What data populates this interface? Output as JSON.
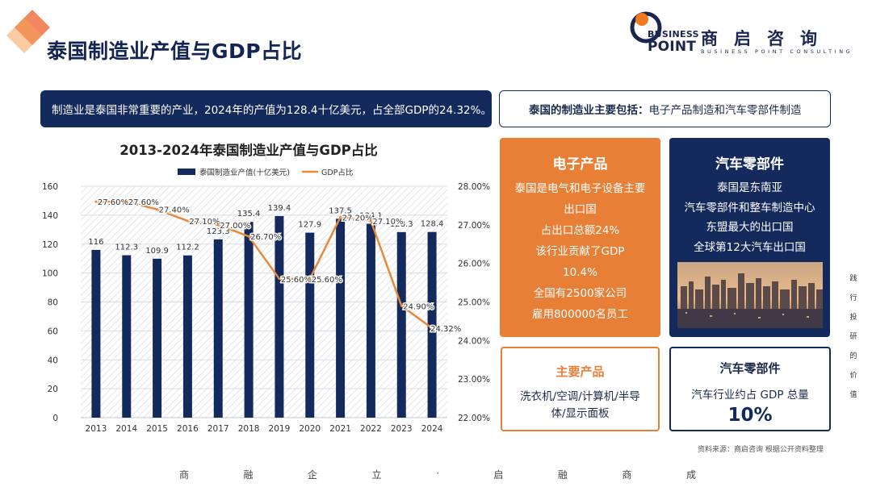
{
  "page": {
    "title": "泰国制造业产值与GDP占比"
  },
  "logo": {
    "word_line1": "BUSINESS",
    "word_line2": "POINT",
    "name_cn": "商启咨询",
    "tagline_en": "BUSINESS POINT CONSULTING"
  },
  "summary": {
    "text": "制造业是泰国非常重要的产业，2024年的产值为128.4十亿美元，占全部GDP的24.32%。"
  },
  "focus": {
    "label": "泰国的制造业主要包括：",
    "value": "电子产品制造和汽车零部件制造"
  },
  "chart_data": {
    "type": "bar",
    "title": "2013-2024年泰国制造业产值与GDP占比",
    "categories": [
      "2013",
      "2014",
      "2015",
      "2016",
      "2017",
      "2018",
      "2019",
      "2020",
      "2021",
      "2022",
      "2023",
      "2024"
    ],
    "series": [
      {
        "name": "泰国制造业产值(十亿美元)",
        "type": "bar",
        "axis": "left",
        "values": [
          116,
          112.3,
          109.9,
          112.2,
          123.3,
          135.4,
          139.4,
          127.9,
          137.5,
          134.1,
          128.3,
          128.4
        ],
        "labels": [
          "116",
          "112.3",
          "109.9",
          "112.2",
          "123.3",
          "135.4",
          "139.4",
          "127.9",
          "137.5",
          "134.1",
          "128.3",
          "128.4"
        ],
        "color": "#142a5c"
      },
      {
        "name": "GDP占比",
        "type": "line",
        "axis": "right",
        "values": [
          27.6,
          27.6,
          27.4,
          27.1,
          27.0,
          26.7,
          25.6,
          25.6,
          27.2,
          27.1,
          24.9,
          24.32
        ],
        "labels": [
          "27.60%",
          "27.60%",
          "27.40%",
          "27.10%",
          "27.00%",
          "26.70%",
          "25.60%",
          "25.60%",
          "27.20%",
          "27.10%",
          "24.90%",
          "24.32%"
        ],
        "color": "#e8883a"
      }
    ],
    "ylim_left": [
      0,
      160
    ],
    "yticks_left": [
      "0",
      "20",
      "40",
      "60",
      "80",
      "100",
      "120",
      "140",
      "160"
    ],
    "ylim_right": [
      22,
      28
    ],
    "yticks_right": [
      "22.00%",
      "23.00%",
      "24.00%",
      "25.00%",
      "26.00%",
      "27.00%",
      "28.00%"
    ],
    "grid": true,
    "legend_position": "top"
  },
  "cards": {
    "electronics": {
      "title": "电子产品",
      "lines": [
        "泰国是电气和电子设备主要",
        "出口国",
        "占出口总额24%",
        "该行业贡献了GDP",
        "10.4%",
        "全国有2500家公司",
        "雇用800000名员工"
      ]
    },
    "auto": {
      "title": "汽车零部件",
      "lines": [
        "泰国是东南亚",
        "汽车零部件和整车制造中心",
        "东盟最大的出口国",
        "全球第12大汽车出口国"
      ]
    },
    "products": {
      "title": "主要产品",
      "desc": "洗衣机/空调/计算机/半导体/显示面板"
    },
    "auto_share": {
      "title": "汽车零部件",
      "desc": "汽车行业约占 GDP 总量",
      "value": "10%"
    }
  },
  "source": {
    "text": "资料来源：商启咨询 根据公开资料整理"
  },
  "vertical_slogan": [
    "践",
    "行",
    "投",
    "研",
    "的",
    "价",
    "值"
  ],
  "footer_slogan": [
    "商",
    "融",
    "企",
    "立",
    "·",
    "启",
    "融",
    "商",
    "成"
  ],
  "colors": {
    "navy": "#142a5c",
    "orange": "#e87f37",
    "line_orange": "#e8883a"
  }
}
